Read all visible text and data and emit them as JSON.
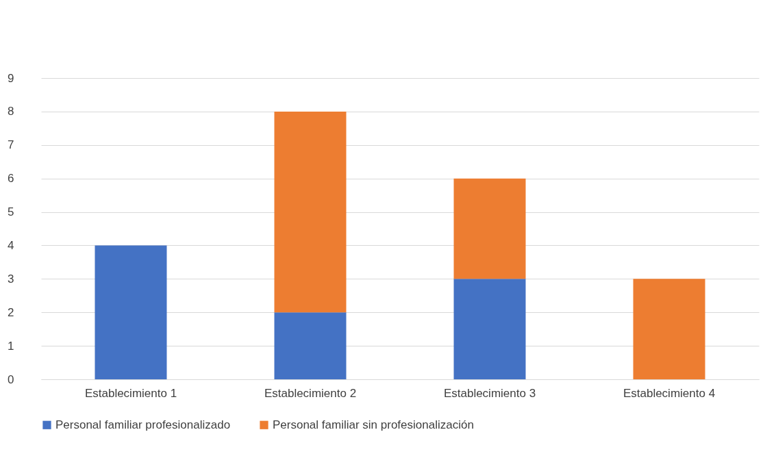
{
  "chart_data": {
    "type": "bar",
    "stacked": true,
    "categories": [
      "Establecimiento 1",
      "Establecimiento 2",
      "Establecimiento 3",
      "Establecimiento 4"
    ],
    "series": [
      {
        "name": "Personal familiar profesionalizado",
        "color": "#4472c4",
        "values": [
          4,
          2,
          3,
          0
        ]
      },
      {
        "name": "Personal familiar sin profesionalización",
        "color": "#ed7d31",
        "values": [
          0,
          6,
          3,
          3
        ]
      }
    ],
    "ylim": [
      0,
      9
    ],
    "yticks": [
      0,
      1,
      2,
      3,
      4,
      5,
      6,
      7,
      8,
      9
    ],
    "grid": "y",
    "legend": "bottom"
  }
}
